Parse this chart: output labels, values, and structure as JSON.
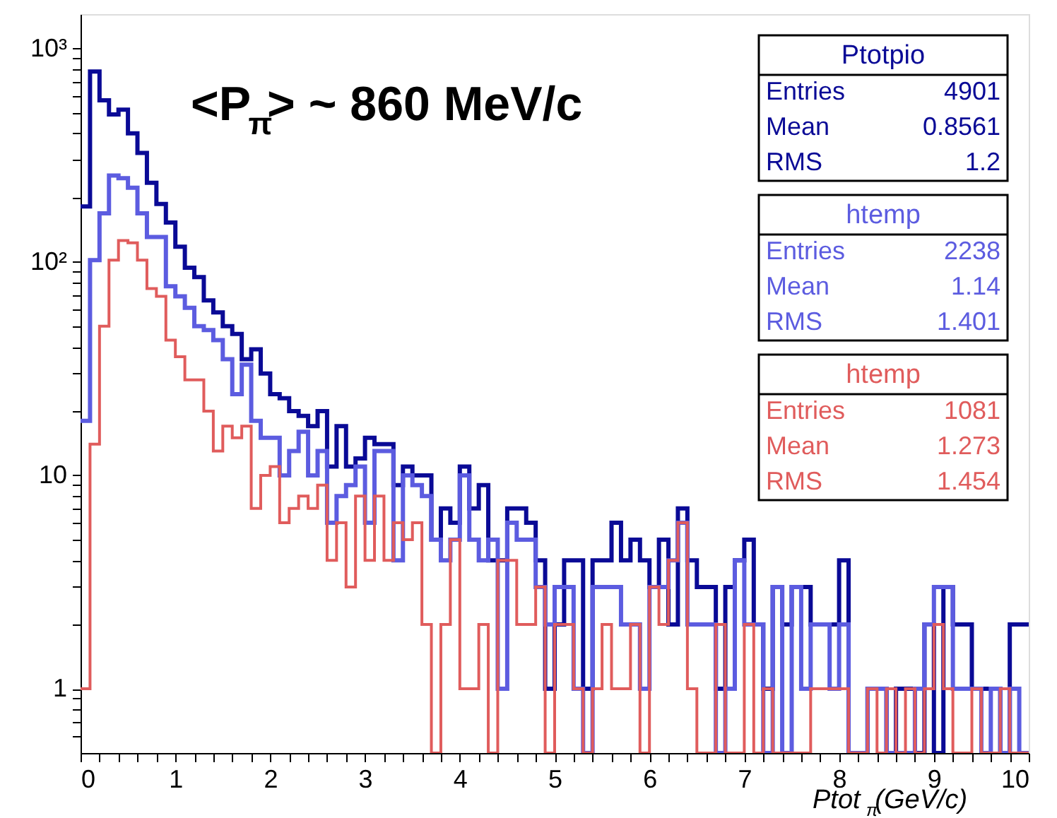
{
  "chart_data": {
    "type": "histogram",
    "bins": [
      0,
      0.1,
      0.2,
      0.3,
      0.4,
      0.5,
      0.6,
      0.7,
      0.8,
      0.9,
      1,
      1.1,
      1.2,
      1.3,
      1.4,
      1.5,
      1.6,
      1.7,
      1.8,
      1.9,
      2,
      2.1,
      2.2,
      2.3,
      2.4,
      2.5,
      2.6,
      2.7,
      2.8,
      2.9,
      3,
      3.1,
      3.2,
      3.3,
      3.4,
      3.5,
      3.6,
      3.7,
      3.8,
      3.9,
      4,
      4.1,
      4.2,
      4.3,
      4.4,
      4.5,
      4.6,
      4.7,
      4.8,
      4.9,
      5,
      5.1,
      5.2,
      5.3,
      5.4,
      5.5,
      5.6,
      5.7,
      5.8,
      5.9,
      6,
      6.1,
      6.2,
      6.3,
      6.4,
      6.5,
      6.6,
      6.7,
      6.8,
      6.9,
      7,
      7.1,
      7.2,
      7.3,
      7.4,
      7.5,
      7.6,
      7.7,
      7.8,
      7.9,
      8,
      8.1,
      8.2,
      8.3,
      8.4,
      8.5,
      8.6,
      8.7,
      8.8,
      8.9,
      9,
      9.1,
      9.2,
      9.3,
      9.4,
      9.5,
      9.6,
      9.7,
      9.8,
      9.9,
      10
    ],
    "series": [
      {
        "name": "Ptotpio",
        "color": "#0a0a96",
        "values": [
          182,
          780,
          572,
          491,
          517,
          401,
          324,
          235,
          187,
          153,
          118,
          94,
          85,
          66,
          58,
          50,
          46,
          35,
          39,
          30,
          24,
          23,
          20,
          19,
          17,
          20,
          11,
          17,
          11,
          12,
          15,
          14,
          14,
          9,
          11,
          10,
          10,
          5,
          7,
          6,
          11,
          7,
          9,
          4,
          4,
          7,
          7,
          6,
          4,
          1,
          2,
          4,
          4,
          1,
          4,
          4,
          6,
          4,
          5,
          4,
          3,
          5,
          2,
          7,
          4,
          3,
          3,
          1,
          3,
          4,
          5,
          2,
          1,
          3,
          2,
          3,
          3,
          2,
          2,
          2,
          4,
          null,
          null,
          1,
          1,
          null,
          1,
          1,
          null,
          2,
          null,
          3,
          2,
          2,
          1,
          1,
          1,
          null,
          2,
          2
        ]
      },
      {
        "name": "htemp",
        "color": "#5c5ce0",
        "values": [
          18,
          102,
          169,
          254,
          247,
          223,
          169,
          131,
          131,
          77,
          69,
          61,
          50,
          48,
          43,
          35,
          24,
          33,
          18,
          15,
          15,
          10,
          13,
          16,
          10,
          13,
          6,
          8,
          9,
          11,
          6,
          13,
          13,
          4,
          10,
          9,
          8,
          5,
          4,
          5,
          10,
          5,
          4,
          5,
          1,
          6,
          5,
          5,
          3,
          2,
          3,
          3,
          1,
          null,
          3,
          3,
          3,
          2,
          2,
          1,
          3,
          3,
          4,
          6,
          2,
          2,
          2,
          null,
          1,
          4,
          2,
          2,
          null,
          3,
          null,
          3,
          1,
          2,
          2,
          1,
          2,
          null,
          null,
          1,
          1,
          null,
          null,
          null,
          1,
          2,
          3,
          3,
          1,
          1,
          1,
          null,
          1,
          null,
          1,
          null
        ]
      },
      {
        "name": "htemp",
        "color": "#e05c5c",
        "values": [
          1,
          14,
          50,
          102,
          126,
          123,
          102,
          75,
          69,
          43,
          36,
          28,
          28,
          20,
          13,
          17,
          15,
          17,
          7,
          10,
          11,
          6,
          7,
          8,
          7,
          9,
          4,
          6,
          3,
          8,
          4,
          8,
          4,
          6,
          5,
          6,
          2,
          null,
          2,
          5,
          1,
          1,
          2,
          null,
          4,
          4,
          2,
          2,
          3,
          null,
          2,
          2,
          1,
          null,
          1,
          2,
          1,
          1,
          2,
          null,
          3,
          2,
          4,
          6,
          1,
          null,
          null,
          2,
          null,
          null,
          2,
          null,
          1,
          null,
          null,
          null,
          null,
          1,
          1,
          1,
          1,
          null,
          null,
          1,
          null,
          1,
          null,
          1,
          null,
          1,
          2,
          1,
          null,
          null,
          1,
          null,
          null,
          1,
          null,
          null
        ]
      }
    ],
    "xlabel": "Ptot$_{π}$(GeV/c)",
    "annotations": [
      "<P$_{π}$> ~ 860 MeV/c",
      "Entries 4901",
      "Mean 0.8561",
      "RMS 1.2",
      "Entries 2238",
      "Mean 1.14",
      "RMS 1.401",
      "Entries 1081",
      "Mean 1.273",
      "RMS 1.454"
    ],
    "xlim": [
      0,
      10
    ],
    "ylim": [
      0.5,
      1450
    ],
    "log": true,
    "legend": "top right",
    "xticks": [
      0,
      {
        "value": 0.2,
        "label": null
      },
      {
        "value": 0.4,
        "label": null
      },
      {
        "value": 0.6,
        "label": null
      },
      {
        "value": 0.8,
        "label": null
      },
      1,
      {
        "value": 1.2,
        "label": null
      },
      {
        "value": 1.4,
        "label": null
      },
      {
        "value": 1.6,
        "label": null
      },
      {
        "value": 1.8,
        "label": null
      },
      2,
      {
        "value": 2.2,
        "label": null
      },
      {
        "value": 2.4,
        "label": null
      },
      {
        "value": 2.6,
        "label": null
      },
      {
        "value": 2.8,
        "label": null
      },
      3,
      {
        "value": 3.2,
        "label": null
      },
      {
        "value": 3.4,
        "label": null
      },
      {
        "value": 3.6,
        "label": null
      },
      {
        "value": 3.8,
        "label": null
      },
      4,
      {
        "value": 4.2,
        "label": null
      },
      {
        "value": 4.4,
        "label": null
      },
      {
        "value": 4.6,
        "label": null
      },
      {
        "value": 4.8,
        "label": null
      },
      5,
      {
        "value": 5.2,
        "label": null
      },
      {
        "value": 5.4,
        "label": null
      },
      {
        "value": 5.6,
        "label": null
      },
      {
        "value": 5.8,
        "label": null
      },
      6,
      {
        "value": 6.2,
        "label": null
      },
      {
        "value": 6.4,
        "label": null
      },
      {
        "value": 6.6,
        "label": null
      },
      {
        "value": 6.8,
        "label": null
      },
      7,
      {
        "value": 7.2,
        "label": null
      },
      {
        "value": 7.4,
        "label": null
      },
      {
        "value": 7.6,
        "label": null
      },
      {
        "value": 7.8,
        "label": null
      },
      8,
      {
        "value": 8.2,
        "label": null
      },
      {
        "value": 8.4,
        "label": null
      },
      {
        "value": 8.6,
        "label": null
      },
      {
        "value": 8.8,
        "label": null
      },
      9,
      {
        "value": 9.2,
        "label": null
      },
      {
        "value": 9.4,
        "label": null
      },
      {
        "value": 9.6,
        "label": null
      },
      {
        "value": 9.8,
        "label": null
      },
      10
    ],
    "yticks": [
      {
        "value": 0.6,
        "label": null
      },
      {
        "value": 0.7,
        "label": null
      },
      {
        "value": 0.8,
        "label": null
      },
      {
        "value": 0.9,
        "label": null
      },
      1,
      {
        "value": 2,
        "label": null
      },
      {
        "value": 3,
        "label": null
      },
      {
        "value": 4,
        "label": null
      },
      {
        "value": 5,
        "label": null
      },
      {
        "value": 6,
        "label": null
      },
      {
        "value": 7,
        "label": null
      },
      {
        "value": 8,
        "label": null
      },
      {
        "value": 9,
        "label": null
      },
      10,
      {
        "value": 20,
        "label": null
      },
      {
        "value": 30,
        "label": null
      },
      {
        "value": 40,
        "label": null
      },
      {
        "value": 50,
        "label": null
      },
      {
        "value": 60,
        "label": null
      },
      {
        "value": 70,
        "label": null
      },
      {
        "value": 80,
        "label": null
      },
      {
        "value": 90,
        "label": null
      },
      {
        "value": 100,
        "label": "10²"
      },
      {
        "value": 200,
        "label": null
      },
      {
        "value": 300,
        "label": null
      },
      {
        "value": 400,
        "label": null
      },
      {
        "value": 500,
        "label": null
      },
      {
        "value": 600,
        "label": null
      },
      {
        "value": 700,
        "label": null
      },
      {
        "value": 800,
        "label": null
      },
      {
        "value": 900,
        "label": null
      },
      {
        "value": 1000,
        "label": "10³"
      }
    ]
  }
}
